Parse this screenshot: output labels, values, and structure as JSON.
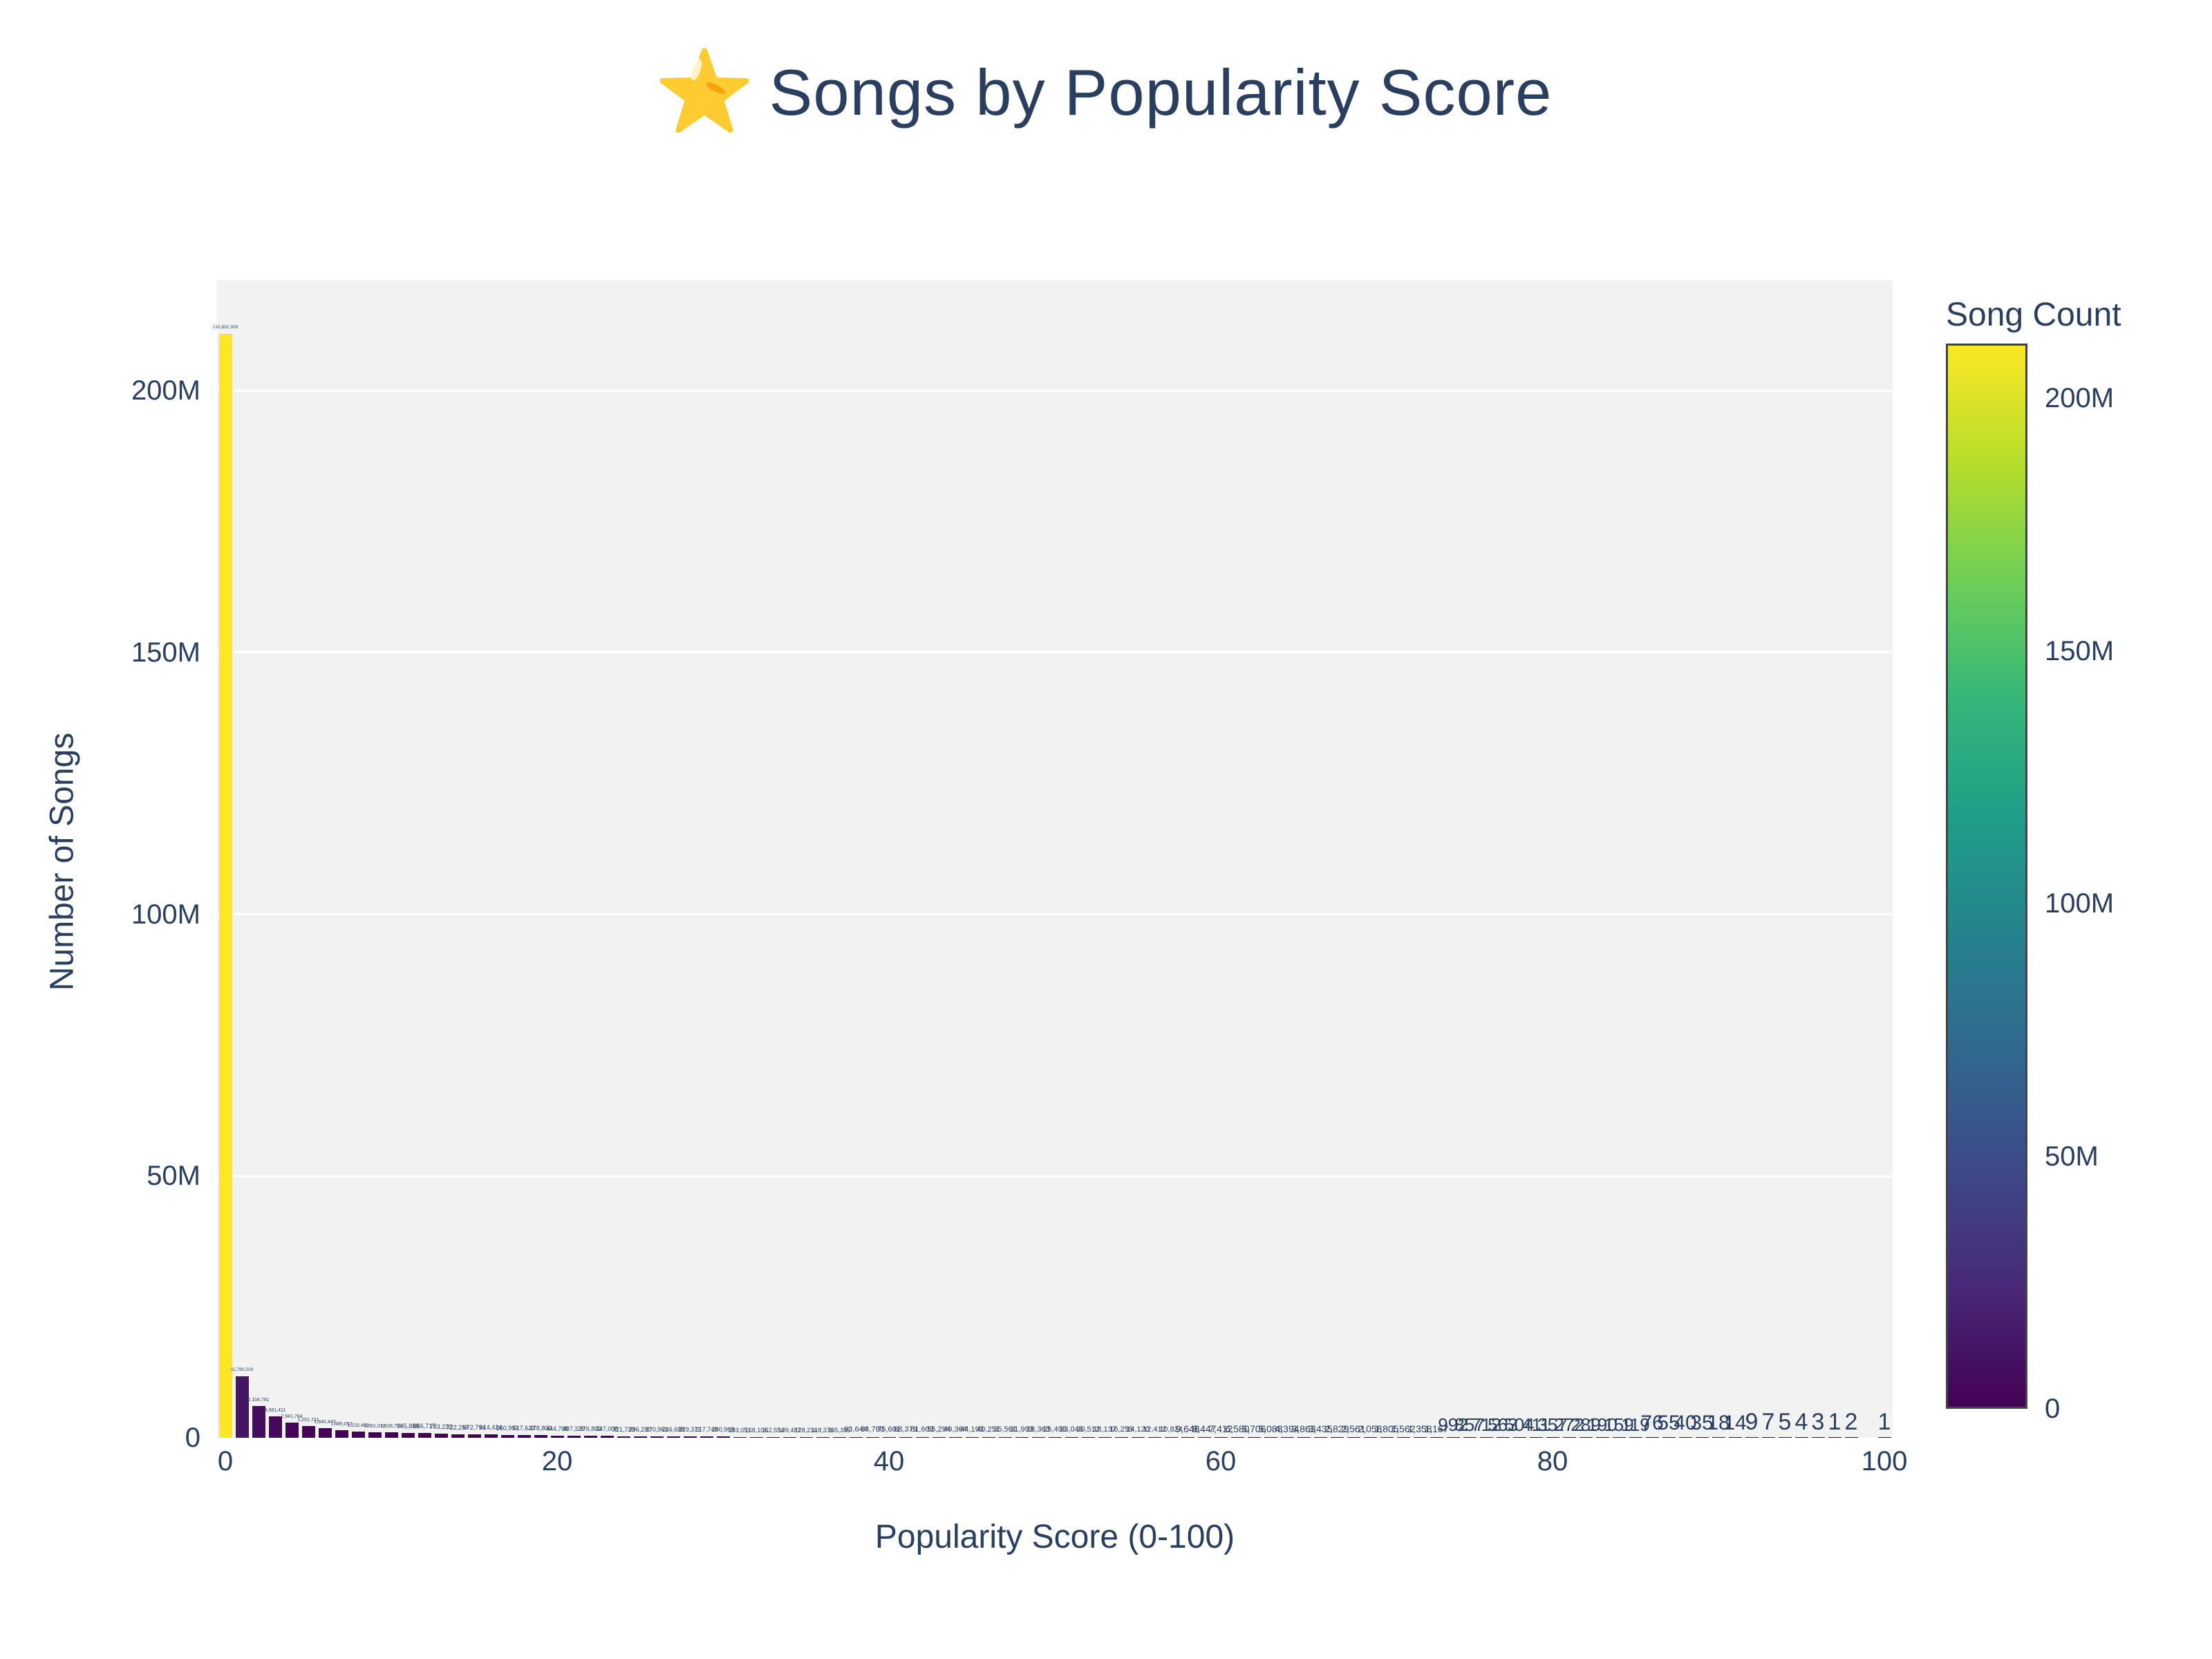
{
  "title": {
    "text": "Songs by Popularity Score",
    "icon": "star-emoji"
  },
  "x_axis": {
    "title": "Popularity Score (0-100)",
    "tick_labels": [
      "0",
      "20",
      "40",
      "60",
      "80",
      "100"
    ]
  },
  "y_axis": {
    "title": "Number of Songs",
    "tick_labels": [
      "0",
      "50M",
      "100M",
      "150M",
      "200M"
    ]
  },
  "colorbar": {
    "title": "Song Count",
    "tick_labels": [
      "0",
      "50M",
      "100M",
      "150M",
      "200M"
    ],
    "colormap": "viridis"
  },
  "colors": {
    "text": "#2a3f5f",
    "plot_background": "#f2f2f2",
    "gridline": "#ffffff",
    "page_background": "#ffffff",
    "colorbar_outline": "#444444",
    "viridis_min": "#440154",
    "viridis_max": "#fde725",
    "star": "#ffcb33"
  },
  "chart_data": {
    "type": "bar",
    "title": "⭐ Songs by Popularity Score",
    "xlabel": "Popularity Score (0-100)",
    "ylabel": "Number of Songs",
    "legend_title": "Song Count",
    "legend_position": "right-colorbar",
    "grid": true,
    "x_start": 0,
    "x_step": 1,
    "x_range": [
      0,
      100
    ],
    "ylim": [
      0,
      221000000
    ],
    "x_tick_vals": [
      0,
      20,
      40,
      60,
      80,
      100
    ],
    "y_tick_vals": [
      0,
      50000000,
      100000000,
      150000000,
      200000000
    ],
    "colorscale": "viridis",
    "color_by": "value",
    "bar_value_labels": true,
    "values": [
      210852309,
      11780218,
      6104791,
      4081411,
      2941784,
      2251721,
      1840443,
      1485052,
      1216488,
      1081018,
      1028773,
      945868,
      866717,
      793232,
      722259,
      672794,
      614424,
      560997,
      517623,
      478800,
      444708,
      407329,
      376803,
      347008,
      321720,
      296290,
      270961,
      246688,
      229372,
      217749,
      200968,
      183051,
      168106,
      152554,
      139487,
      128214,
      118376,
      105395,
      93644,
      84780,
      75601,
      68379,
      61603,
      55294,
      49364,
      44193,
      40251,
      35561,
      31993,
      28363,
      25496,
      23046,
      20512,
      18137,
      16255,
      14120,
      12412,
      10824,
      9648,
      8447,
      7412,
      6580,
      5706,
      5088,
      4394,
      3863,
      3435,
      2829,
      2561,
      2058,
      1805,
      1562,
      1358,
      1167,
      992,
      857,
      712,
      563,
      504,
      411,
      357,
      272,
      289,
      190,
      159,
      119,
      76,
      55,
      40,
      35,
      18,
      14,
      9,
      7,
      5,
      4,
      3,
      1,
      2,
      0,
      1
    ]
  }
}
